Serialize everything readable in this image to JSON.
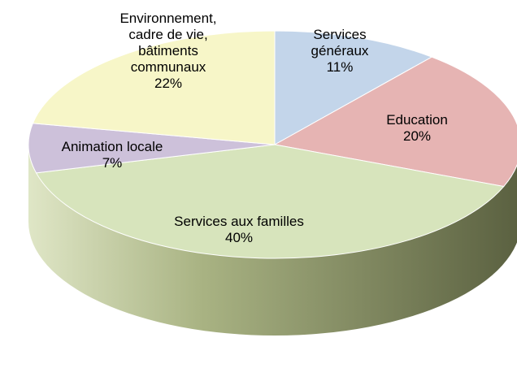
{
  "chart_data": {
    "type": "pie",
    "three_d": true,
    "slices": [
      {
        "label_lines": [
          "Services",
          "généraux"
        ],
        "value": 11,
        "pct_label": "11%",
        "color": "#c3d5ea"
      },
      {
        "label_lines": [
          "Education"
        ],
        "value": 20,
        "pct_label": "20%",
        "color": "#e6b4b3"
      },
      {
        "label_lines": [
          "Services aux familles"
        ],
        "value": 40,
        "pct_label": "40%",
        "color": "#d7e4bc"
      },
      {
        "label_lines": [
          "Animation locale"
        ],
        "value": 7,
        "pct_label": "7%",
        "color": "#cdc1da"
      },
      {
        "label_lines": [
          "Environnement,",
          "cadre de vie,",
          "bâtiments",
          "communaux"
        ],
        "value": 22,
        "pct_label": "22%",
        "color": "#f7f6c8"
      }
    ],
    "side_color": "#8e9d66"
  }
}
